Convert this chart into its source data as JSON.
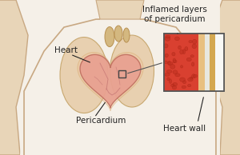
{
  "bg_color": "#f5f0e8",
  "body_color": "#e8d5b8",
  "body_outline": "#c8a882",
  "heart_color": "#e8a090",
  "heart_outline": "#c07060",
  "heart_vessels_color": "#d4a060",
  "pericardium_color": "#f0c8a0",
  "inset_bg": "#f8f8f8",
  "inset_red": "#d94030",
  "inset_tan1": "#e8c080",
  "inset_tan2": "#d4a850",
  "inset_white": "#f0f0f0",
  "inset_border": "#555555",
  "label_heart": "Heart",
  "label_pericardium": "Pericardium",
  "label_inflamed": "Inflamed layers\nof pericardium",
  "label_heartwall": "Heart wall",
  "text_color": "#222222",
  "font_size": 7.5
}
